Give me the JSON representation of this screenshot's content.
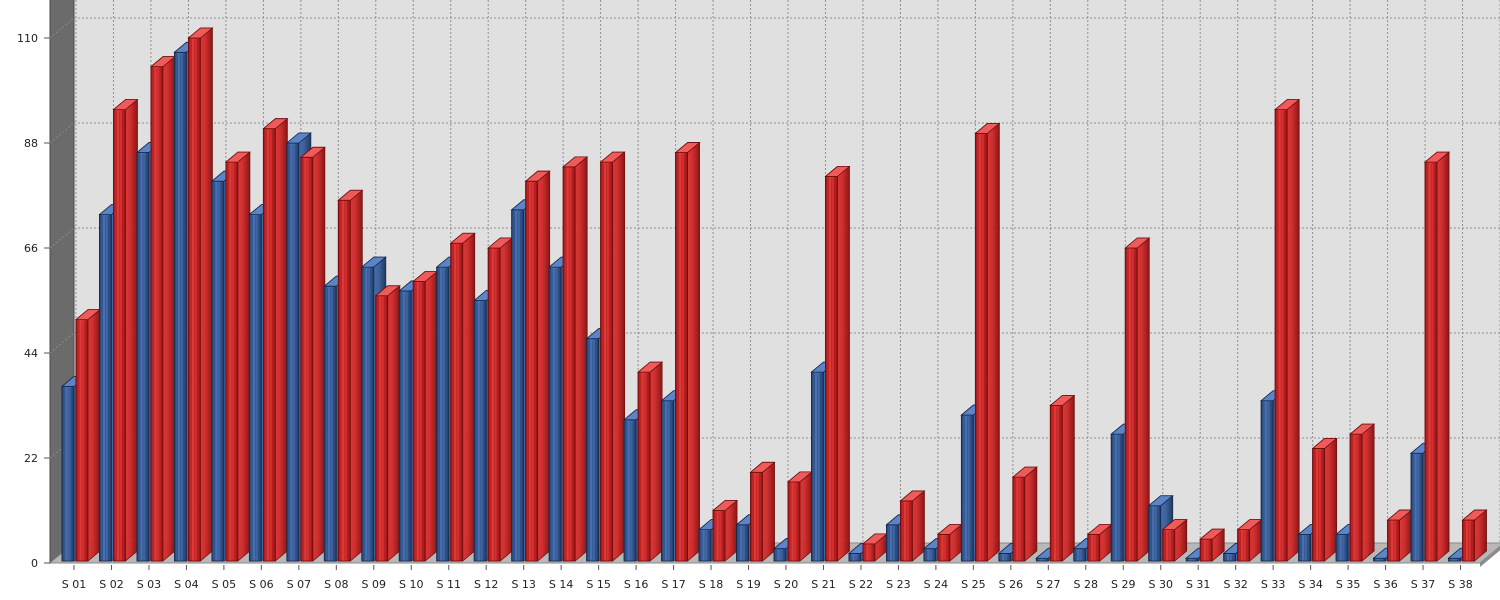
{
  "chart_data": {
    "type": "bar",
    "style": "3d-cylinder",
    "categories": [
      "S 01",
      "S 02",
      "S 03",
      "S 04",
      "S 05",
      "S 06",
      "S 07",
      "S 08",
      "S 09",
      "S 10",
      "S 11",
      "S 12",
      "S 13",
      "S 14",
      "S 15",
      "S 16",
      "S 17",
      "S 18",
      "S 19",
      "S 20",
      "S 21",
      "S 22",
      "S 23",
      "S 24",
      "S 25",
      "S 26",
      "S 27",
      "S 28",
      "S 29",
      "S 30",
      "S 31",
      "S 32",
      "S 33",
      "S 34",
      "S 35",
      "S 36",
      "S 37",
      "S 38"
    ],
    "series": [
      {
        "color": "#3a5f9c",
        "values": [
          37,
          73,
          86,
          107,
          80,
          73,
          88,
          58,
          62,
          57,
          62,
          55,
          74,
          62,
          47,
          30,
          34,
          7,
          8,
          3,
          40,
          2,
          8,
          3,
          31,
          2,
          1,
          3,
          27,
          12,
          1,
          2,
          34,
          6,
          6,
          1,
          23,
          1
        ]
      },
      {
        "color": "#d42c2c",
        "values": [
          51,
          95,
          104,
          110,
          84,
          91,
          85,
          76,
          56,
          59,
          67,
          66,
          80,
          83,
          84,
          40,
          86,
          11,
          19,
          17,
          81,
          4,
          13,
          6,
          90,
          18,
          33,
          6,
          66,
          7,
          5,
          7,
          95,
          24,
          27,
          9,
          84,
          9
        ]
      }
    ],
    "y_ticks": [
      0,
      22,
      44,
      66,
      88,
      110
    ],
    "ylim": [
      0,
      115
    ],
    "grid": true,
    "legend": "none",
    "colors": {
      "wall": "#e0e0e0",
      "side_wall": "#6b6b6b",
      "floor": "#b8b8b8",
      "grid": "#8f8f8f"
    }
  }
}
